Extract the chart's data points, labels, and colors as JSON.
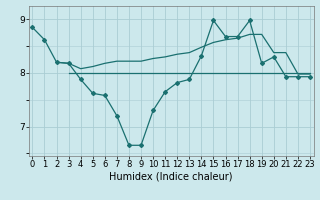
{
  "xlabel": "Humidex (Indice chaleur)",
  "bg_color": "#cce8ec",
  "grid_color": "#aacdd4",
  "line_color": "#1a7070",
  "x_ticks": [
    0,
    1,
    2,
    3,
    4,
    5,
    6,
    7,
    8,
    9,
    10,
    11,
    12,
    13,
    14,
    15,
    16,
    17,
    18,
    19,
    20,
    21,
    22,
    23
  ],
  "y_ticks": [
    7,
    8,
    9
  ],
  "ylim": [
    6.45,
    9.25
  ],
  "xlim": [
    -0.3,
    23.3
  ],
  "line1_x": [
    0,
    1,
    2,
    3,
    4,
    5,
    6,
    7,
    8,
    9,
    10,
    11,
    12,
    13,
    14,
    15,
    16,
    17,
    18,
    19,
    20,
    21,
    22,
    23
  ],
  "line1_y": [
    8.85,
    8.62,
    8.2,
    8.18,
    7.88,
    7.62,
    7.58,
    7.2,
    6.65,
    6.65,
    7.3,
    7.65,
    7.82,
    7.88,
    8.32,
    8.98,
    8.68,
    8.68,
    8.98,
    8.18,
    8.3,
    7.93,
    7.93,
    7.93
  ],
  "line2_x": [
    2,
    3,
    4,
    5,
    6,
    7,
    8,
    9,
    10,
    11,
    12,
    13,
    14,
    15,
    16,
    17,
    18,
    19,
    20,
    21,
    22,
    23
  ],
  "line2_y": [
    8.2,
    8.18,
    8.08,
    8.12,
    8.18,
    8.22,
    8.22,
    8.22,
    8.27,
    8.3,
    8.35,
    8.38,
    8.48,
    8.57,
    8.62,
    8.65,
    8.72,
    8.72,
    8.38,
    8.38,
    7.98,
    7.98
  ],
  "line3_x": [
    3,
    23
  ],
  "line3_y": [
    8.0,
    8.0
  ],
  "xlabel_fontsize": 7,
  "tick_fontsize": 6
}
